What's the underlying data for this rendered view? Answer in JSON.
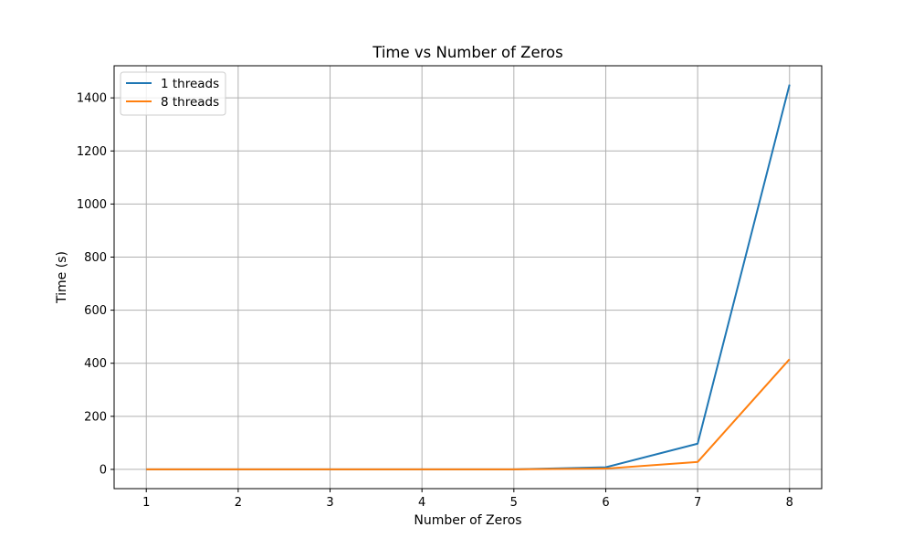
{
  "chart_data": {
    "type": "line",
    "title": "Time vs Number of Zeros",
    "xlabel": "Number of Zeros",
    "ylabel": "Time (s)",
    "x": [
      1,
      2,
      3,
      4,
      5,
      6,
      7,
      8
    ],
    "xticks": [
      1,
      2,
      3,
      4,
      5,
      6,
      7,
      8
    ],
    "yticks": [
      0,
      200,
      400,
      600,
      800,
      1000,
      1200,
      1400
    ],
    "xlim": [
      0.65,
      8.35
    ],
    "ylim": [
      -72.5,
      1521
    ],
    "grid": true,
    "legend_position": "top-left",
    "series": [
      {
        "name": "1 threads",
        "color": "#1f77b4",
        "values": [
          0.0,
          0.0,
          0.0,
          0.02,
          0.2,
          8,
          97,
          1450
        ]
      },
      {
        "name": "8 threads",
        "color": "#ff7f0e",
        "values": [
          0.0,
          0.0,
          0.0,
          0.01,
          0.1,
          3,
          28,
          415
        ]
      }
    ]
  }
}
